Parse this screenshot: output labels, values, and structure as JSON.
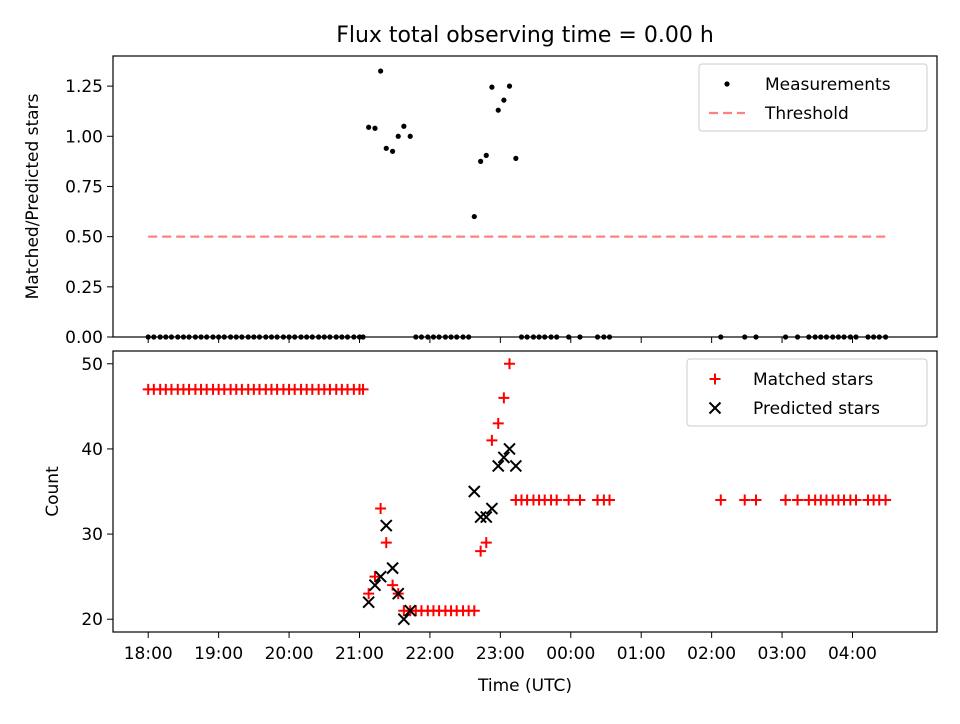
{
  "figure": {
    "title": "Flux total observing time = 0.00 h"
  },
  "chart_data": [
    {
      "type": "scatter",
      "ylabel": "Matched/Predicted stars",
      "xlabel": "",
      "ylim": [
        0,
        1.4
      ],
      "yticks": [
        0.0,
        0.25,
        0.5,
        0.75,
        1.0,
        1.25
      ],
      "ytick_labels": [
        "0.00",
        "0.25",
        "0.50",
        "0.75",
        "1.00",
        "1.25"
      ],
      "xlim_hours": [
        17.5,
        29.2
      ],
      "legend_position": "top-right",
      "grid": false,
      "series": [
        {
          "name": "Measurements",
          "kind": "scatter",
          "marker": "dot",
          "color": "#000000",
          "points": [
            [
              18.0,
              0
            ],
            [
              18.08,
              0
            ],
            [
              18.17,
              0
            ],
            [
              18.25,
              0
            ],
            [
              18.33,
              0
            ],
            [
              18.42,
              0
            ],
            [
              18.5,
              0
            ],
            [
              18.58,
              0
            ],
            [
              18.67,
              0
            ],
            [
              18.75,
              0
            ],
            [
              18.83,
              0
            ],
            [
              18.92,
              0
            ],
            [
              19.0,
              0
            ],
            [
              19.08,
              0
            ],
            [
              19.17,
              0
            ],
            [
              19.25,
              0
            ],
            [
              19.33,
              0
            ],
            [
              19.42,
              0
            ],
            [
              19.5,
              0
            ],
            [
              19.58,
              0
            ],
            [
              19.67,
              0
            ],
            [
              19.75,
              0
            ],
            [
              19.83,
              0
            ],
            [
              19.92,
              0
            ],
            [
              20.0,
              0
            ],
            [
              20.08,
              0
            ],
            [
              20.17,
              0
            ],
            [
              20.25,
              0
            ],
            [
              20.33,
              0
            ],
            [
              20.42,
              0
            ],
            [
              20.5,
              0
            ],
            [
              20.58,
              0
            ],
            [
              20.67,
              0
            ],
            [
              20.75,
              0
            ],
            [
              20.83,
              0
            ],
            [
              20.92,
              0
            ],
            [
              21.0,
              0
            ],
            [
              21.05,
              0
            ],
            [
              21.13,
              1.045
            ],
            [
              21.22,
              1.04
            ],
            [
              21.3,
              1.325
            ],
            [
              21.38,
              0.94
            ],
            [
              21.47,
              0.925
            ],
            [
              21.55,
              1.0
            ],
            [
              21.63,
              1.05
            ],
            [
              21.72,
              1.0
            ],
            [
              21.8,
              0
            ],
            [
              21.88,
              0
            ],
            [
              21.97,
              0
            ],
            [
              22.05,
              0
            ],
            [
              22.13,
              0
            ],
            [
              22.22,
              0
            ],
            [
              22.3,
              0
            ],
            [
              22.38,
              0
            ],
            [
              22.47,
              0
            ],
            [
              22.55,
              0
            ],
            [
              22.63,
              0.6
            ],
            [
              22.72,
              0.875
            ],
            [
              22.8,
              0.905
            ],
            [
              22.88,
              1.245
            ],
            [
              22.97,
              1.13
            ],
            [
              23.05,
              1.18
            ],
            [
              23.13,
              1.25
            ],
            [
              23.22,
              0.89
            ],
            [
              23.3,
              0
            ],
            [
              23.38,
              0
            ],
            [
              23.47,
              0
            ],
            [
              23.55,
              0
            ],
            [
              23.63,
              0
            ],
            [
              23.72,
              0
            ],
            [
              23.8,
              0
            ],
            [
              23.97,
              0
            ],
            [
              24.13,
              0
            ],
            [
              24.38,
              0
            ],
            [
              24.47,
              0
            ],
            [
              24.55,
              0
            ],
            [
              26.13,
              0
            ],
            [
              26.47,
              0
            ],
            [
              26.63,
              0
            ],
            [
              27.05,
              0
            ],
            [
              27.22,
              0
            ],
            [
              27.38,
              0
            ],
            [
              27.47,
              0
            ],
            [
              27.55,
              0
            ],
            [
              27.63,
              0
            ],
            [
              27.72,
              0
            ],
            [
              27.8,
              0
            ],
            [
              27.88,
              0
            ],
            [
              27.97,
              0
            ],
            [
              28.05,
              0
            ],
            [
              28.22,
              0
            ],
            [
              28.3,
              0
            ],
            [
              28.38,
              0
            ],
            [
              28.47,
              0
            ]
          ]
        },
        {
          "name": "Threshold",
          "kind": "dashed-line",
          "color": "#ff8080",
          "points": [
            [
              18.0,
              0.5
            ],
            [
              28.5,
              0.5
            ]
          ]
        }
      ]
    },
    {
      "type": "scatter",
      "ylabel": "Count",
      "xlabel": "Time (UTC)",
      "ylim": [
        18.5,
        51.5
      ],
      "yticks": [
        20,
        30,
        40,
        50
      ],
      "ytick_labels": [
        "20",
        "30",
        "40",
        "50"
      ],
      "xticks_hours": [
        18,
        19,
        20,
        21,
        22,
        23,
        24,
        25,
        26,
        27,
        28
      ],
      "xtick_labels": [
        "18:00",
        "19:00",
        "20:00",
        "21:00",
        "22:00",
        "23:00",
        "00:00",
        "01:00",
        "02:00",
        "03:00",
        "04:00"
      ],
      "xlim_hours": [
        17.5,
        29.2
      ],
      "legend_position": "top-right",
      "grid": false,
      "series": [
        {
          "name": "Matched stars",
          "kind": "scatter",
          "marker": "plus",
          "color": "#ff0000",
          "points": [
            [
              18.0,
              47
            ],
            [
              18.08,
              47
            ],
            [
              18.17,
              47
            ],
            [
              18.25,
              47
            ],
            [
              18.33,
              47
            ],
            [
              18.42,
              47
            ],
            [
              18.5,
              47
            ],
            [
              18.58,
              47
            ],
            [
              18.67,
              47
            ],
            [
              18.75,
              47
            ],
            [
              18.83,
              47
            ],
            [
              18.92,
              47
            ],
            [
              19.0,
              47
            ],
            [
              19.08,
              47
            ],
            [
              19.17,
              47
            ],
            [
              19.25,
              47
            ],
            [
              19.33,
              47
            ],
            [
              19.42,
              47
            ],
            [
              19.5,
              47
            ],
            [
              19.58,
              47
            ],
            [
              19.67,
              47
            ],
            [
              19.75,
              47
            ],
            [
              19.83,
              47
            ],
            [
              19.92,
              47
            ],
            [
              20.0,
              47
            ],
            [
              20.08,
              47
            ],
            [
              20.17,
              47
            ],
            [
              20.25,
              47
            ],
            [
              20.33,
              47
            ],
            [
              20.42,
              47
            ],
            [
              20.5,
              47
            ],
            [
              20.58,
              47
            ],
            [
              20.67,
              47
            ],
            [
              20.75,
              47
            ],
            [
              20.83,
              47
            ],
            [
              20.92,
              47
            ],
            [
              21.0,
              47
            ],
            [
              21.05,
              47
            ],
            [
              21.13,
              23
            ],
            [
              21.22,
              25
            ],
            [
              21.3,
              33
            ],
            [
              21.38,
              29
            ],
            [
              21.47,
              24
            ],
            [
              21.55,
              23
            ],
            [
              21.63,
              21
            ],
            [
              21.72,
              21
            ],
            [
              21.8,
              21
            ],
            [
              21.88,
              21
            ],
            [
              21.97,
              21
            ],
            [
              22.05,
              21
            ],
            [
              22.13,
              21
            ],
            [
              22.22,
              21
            ],
            [
              22.3,
              21
            ],
            [
              22.38,
              21
            ],
            [
              22.47,
              21
            ],
            [
              22.55,
              21
            ],
            [
              22.63,
              21
            ],
            [
              22.72,
              28
            ],
            [
              22.8,
              29
            ],
            [
              22.88,
              41
            ],
            [
              22.97,
              43
            ],
            [
              23.05,
              46
            ],
            [
              23.13,
              50
            ],
            [
              23.22,
              34
            ],
            [
              23.3,
              34
            ],
            [
              23.38,
              34
            ],
            [
              23.47,
              34
            ],
            [
              23.55,
              34
            ],
            [
              23.63,
              34
            ],
            [
              23.72,
              34
            ],
            [
              23.8,
              34
            ],
            [
              23.97,
              34
            ],
            [
              24.13,
              34
            ],
            [
              24.38,
              34
            ],
            [
              24.47,
              34
            ],
            [
              24.55,
              34
            ],
            [
              26.13,
              34
            ],
            [
              26.47,
              34
            ],
            [
              26.63,
              34
            ],
            [
              27.05,
              34
            ],
            [
              27.22,
              34
            ],
            [
              27.38,
              34
            ],
            [
              27.47,
              34
            ],
            [
              27.55,
              34
            ],
            [
              27.63,
              34
            ],
            [
              27.72,
              34
            ],
            [
              27.8,
              34
            ],
            [
              27.88,
              34
            ],
            [
              27.97,
              34
            ],
            [
              28.05,
              34
            ],
            [
              28.22,
              34
            ],
            [
              28.3,
              34
            ],
            [
              28.38,
              34
            ],
            [
              28.47,
              34
            ]
          ]
        },
        {
          "name": "Predicted stars",
          "kind": "scatter",
          "marker": "x",
          "color": "#000000",
          "points": [
            [
              21.13,
              22
            ],
            [
              21.22,
              24
            ],
            [
              21.3,
              25
            ],
            [
              21.38,
              31
            ],
            [
              21.47,
              26
            ],
            [
              21.55,
              23
            ],
            [
              21.63,
              20
            ],
            [
              21.72,
              21
            ],
            [
              22.63,
              35
            ],
            [
              22.72,
              32
            ],
            [
              22.8,
              32
            ],
            [
              22.88,
              33
            ],
            [
              22.97,
              38
            ],
            [
              23.05,
              39
            ],
            [
              23.13,
              40
            ],
            [
              23.22,
              38
            ]
          ]
        }
      ]
    }
  ]
}
